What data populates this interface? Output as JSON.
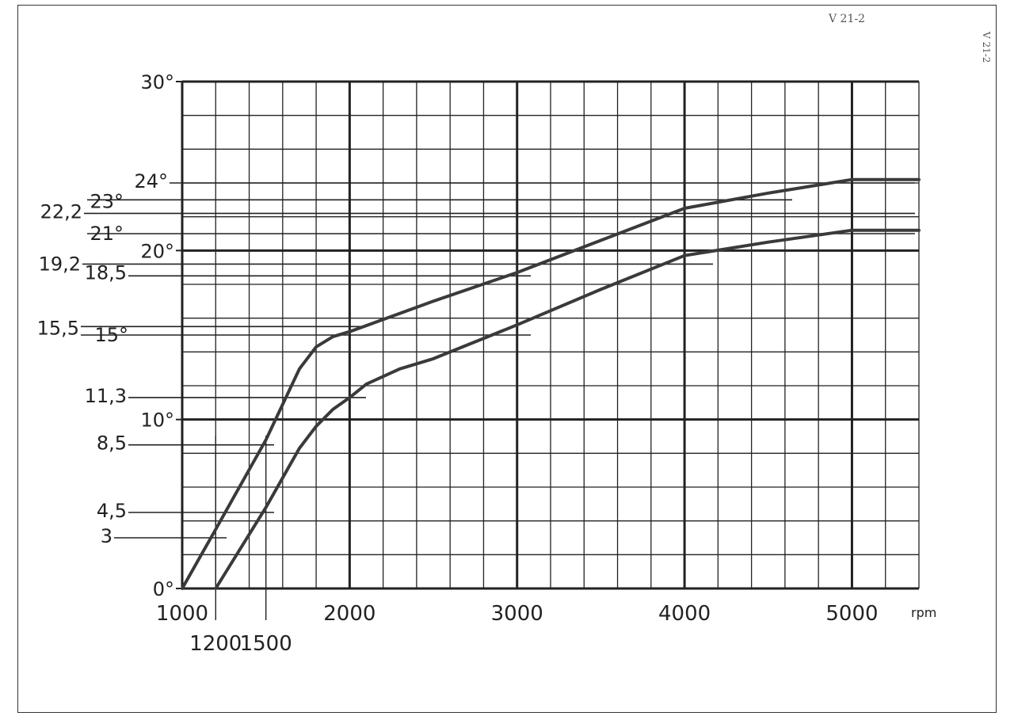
{
  "page": {
    "doc_code": "V 21-2",
    "side_code": "V 21-2"
  },
  "chart_data": {
    "type": "line",
    "title": "",
    "xlabel": "",
    "ylabel": "",
    "x_unit": "rpm",
    "xlim": [
      1000,
      5400
    ],
    "ylim": [
      0,
      30
    ],
    "grid": true,
    "x_major_ticks": [
      {
        "value": 1000,
        "label": "1000"
      },
      {
        "value": 2000,
        "label": "2000"
      },
      {
        "value": 3000,
        "label": "3000"
      },
      {
        "value": 4000,
        "label": "4000"
      },
      {
        "value": 5000,
        "label": "5000"
      }
    ],
    "x_minor_ticks": [
      {
        "value": 1200,
        "label": "1200"
      },
      {
        "value": 1500,
        "label": "1500"
      }
    ],
    "y_major_ticks": [
      {
        "value": 0,
        "label": "0°"
      },
      {
        "value": 10,
        "label": "10°"
      },
      {
        "value": 20,
        "label": "20°"
      },
      {
        "value": 30,
        "label": "30°"
      }
    ],
    "y_annotations": [
      {
        "value": 24,
        "label": "24°"
      },
      {
        "value": 23,
        "label": "23°"
      },
      {
        "value": 22.2,
        "label": "22,2"
      },
      {
        "value": 21,
        "label": "21°"
      },
      {
        "value": 19.2,
        "label": "19,2"
      },
      {
        "value": 18.5,
        "label": "18,5"
      },
      {
        "value": 15.5,
        "label": "15,5"
      },
      {
        "value": 15,
        "label": "15°"
      },
      {
        "value": 11.3,
        "label": "11,3"
      },
      {
        "value": 8.5,
        "label": "8,5"
      },
      {
        "value": 4.5,
        "label": "4,5"
      },
      {
        "value": 3,
        "label": "3"
      }
    ],
    "series": [
      {
        "x": [
          1000,
          1200,
          1500,
          1700,
          1800,
          1900,
          2000,
          2500,
          3000,
          3500,
          4000,
          4500,
          5000,
          5400
        ],
        "y": [
          0,
          3.5,
          8.8,
          13.0,
          14.3,
          14.9,
          15.2,
          17.0,
          18.7,
          20.6,
          22.5,
          23.4,
          24.2,
          24.2
        ]
      },
      {
        "x": [
          1200,
          1500,
          1700,
          1800,
          1900,
          2000,
          2100,
          2300,
          2500,
          3000,
          3500,
          4000,
          4500,
          5000,
          5400
        ],
        "y": [
          0,
          4.8,
          8.3,
          9.6,
          10.6,
          11.3,
          12.1,
          13.0,
          13.6,
          15.6,
          17.7,
          19.7,
          20.5,
          21.2,
          21.2
        ]
      }
    ],
    "colors": {
      "line": "#3a3a3a",
      "grid": "#222222",
      "text": "#222222"
    }
  }
}
